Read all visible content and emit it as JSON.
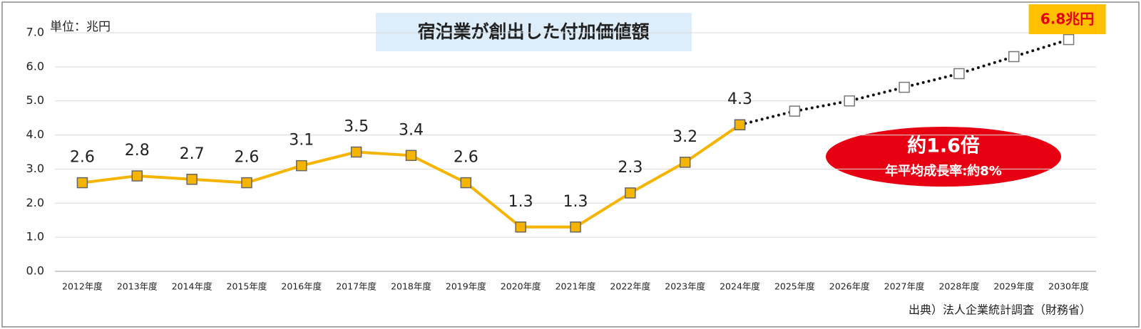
{
  "chart_data": {
    "type": "line",
    "title": "宿泊業が創出した付加価値額",
    "unit_label": "単位：兆円",
    "source": "出典）法人企業統計調査（財務省）",
    "callout": {
      "title": "約1.6倍",
      "subtitle": "年平均成長率:約8%"
    },
    "categories": [
      "2012年度",
      "2013年度",
      "2014年度",
      "2015年度",
      "2016年度",
      "2017年度",
      "2018年度",
      "2019年度",
      "2020年度",
      "2021年度",
      "2022年度",
      "2023年度",
      "2024年度",
      "2025年度",
      "2026年度",
      "2027年度",
      "2028年度",
      "2029年度",
      "2030年度"
    ],
    "series": [
      {
        "color": "#f5b400",
        "style": "solid",
        "show_labels": true,
        "values": [
          2.6,
          2.8,
          2.7,
          2.6,
          3.1,
          3.5,
          3.4,
          2.6,
          1.3,
          1.3,
          2.3,
          3.2,
          4.3,
          null,
          null,
          null,
          null,
          null,
          null
        ]
      },
      {
        "color": "#111111",
        "style": "dotted",
        "show_labels": false,
        "values": [
          null,
          null,
          null,
          null,
          null,
          null,
          null,
          null,
          null,
          null,
          null,
          null,
          4.3,
          4.7,
          5.0,
          5.4,
          5.8,
          6.3,
          6.8
        ],
        "value_labels": [
          null,
          null,
          null,
          null,
          null,
          null,
          null,
          null,
          null,
          null,
          null,
          null,
          null,
          null,
          null,
          null,
          null,
          null,
          "6.8兆円"
        ]
      }
    ],
    "ylim": [
      0,
      7
    ],
    "yticks": [
      {
        "value": 0,
        "label": "0.0"
      },
      {
        "value": 1,
        "label": "1.0"
      },
      {
        "value": 2,
        "label": "2.0"
      },
      {
        "value": 3,
        "label": "3.0"
      },
      {
        "value": 4,
        "label": "4.0"
      },
      {
        "value": 5,
        "label": "5.0"
      },
      {
        "value": 6,
        "label": "6.0"
      },
      {
        "value": 7,
        "label": "7.0"
      }
    ],
    "grid": true
  }
}
